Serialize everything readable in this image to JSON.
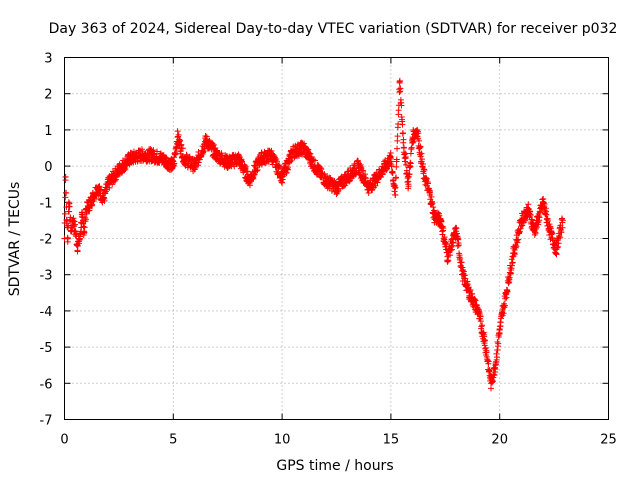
{
  "chart_data": {
    "type": "scatter",
    "title": "Day 363 of 2024, Sidereal Day-to-day VTEC variation (SDTVAR) for receiver p032",
    "xlabel": "GPS time / hours",
    "ylabel": "SDTVAR / TECUs",
    "xlim": [
      0,
      25
    ],
    "ylim": [
      -7,
      3
    ],
    "xticks": [
      "0",
      "5",
      "10",
      "15",
      "20",
      "25"
    ],
    "yticks": [
      "-7",
      "-6",
      "-5",
      "-4",
      "-3",
      "-2",
      "-1",
      "0",
      "1",
      "2",
      "3"
    ],
    "grid": true,
    "marker": "+",
    "series": [
      {
        "name": "SDTVAR",
        "color": "#ff0000",
        "x": [
          0.0,
          0.05,
          0.1,
          0.15,
          0.2,
          0.3,
          0.4,
          0.5,
          0.6,
          0.7,
          0.8,
          0.9,
          1.0,
          1.2,
          1.5,
          1.8,
          2.0,
          2.5,
          3.0,
          3.5,
          4.0,
          4.5,
          5.0,
          5.2,
          5.5,
          6.0,
          6.5,
          7.0,
          7.5,
          8.0,
          8.5,
          9.0,
          9.5,
          10.0,
          10.5,
          11.0,
          11.5,
          12.0,
          12.5,
          13.0,
          13.5,
          14.0,
          14.5,
          15.0,
          15.2,
          15.4,
          15.6,
          15.8,
          16.0,
          16.2,
          16.5,
          16.8,
          17.0,
          17.3,
          17.6,
          18.0,
          18.3,
          18.6,
          19.0,
          19.3,
          19.6,
          19.8,
          20.0,
          20.3,
          20.6,
          21.0,
          21.3,
          21.6,
          22.0,
          22.3,
          22.6,
          22.9
        ],
        "y": [
          -2.0,
          -0.3,
          -1.5,
          -2.0,
          -1.0,
          -1.8,
          -1.5,
          -1.8,
          -2.2,
          -2.0,
          -1.4,
          -1.8,
          -1.2,
          -1.0,
          -0.6,
          -0.9,
          -0.5,
          -0.1,
          0.2,
          0.3,
          0.3,
          0.2,
          0.0,
          0.8,
          0.2,
          0.0,
          0.7,
          0.3,
          0.1,
          0.2,
          -0.4,
          0.2,
          0.3,
          -0.3,
          0.4,
          0.5,
          0.0,
          -0.4,
          -0.6,
          -0.3,
          0.0,
          -0.6,
          -0.2,
          0.2,
          -0.8,
          2.3,
          0.5,
          -0.5,
          0.8,
          1.0,
          -0.2,
          -0.8,
          -1.4,
          -1.5,
          -2.5,
          -1.8,
          -3.0,
          -3.5,
          -4.0,
          -4.8,
          -6.0,
          -5.5,
          -4.5,
          -3.5,
          -2.5,
          -1.5,
          -1.2,
          -1.8,
          -1.0,
          -1.8,
          -2.3,
          -1.5
        ]
      }
    ]
  }
}
